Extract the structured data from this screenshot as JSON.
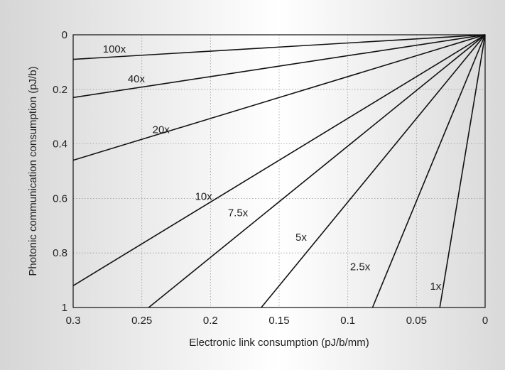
{
  "chart_data": {
    "type": "line",
    "title": "",
    "xlabel": "Electronic link consumption (pJ/b/mm)",
    "ylabel": "Photonic communication consumption (pJ/b)",
    "xlim": [
      0.3,
      0
    ],
    "ylim": [
      1,
      0
    ],
    "x_reversed": true,
    "y_reversed": true,
    "grid": true,
    "x_ticks": [
      "0.3",
      "0.25",
      "0.2",
      "0.15",
      "0.1",
      "0.05",
      "0"
    ],
    "y_ticks": [
      "0",
      "0.2",
      "0.4",
      "0.6",
      "0.8",
      "1"
    ],
    "series": [
      {
        "name": "100x",
        "x": [
          0,
          0.3
        ],
        "y": [
          0,
          0.09
        ]
      },
      {
        "name": "40x",
        "x": [
          0,
          0.3
        ],
        "y": [
          0,
          0.23
        ]
      },
      {
        "name": "20x",
        "x": [
          0,
          0.3
        ],
        "y": [
          0,
          0.46
        ]
      },
      {
        "name": "10x",
        "x": [
          0,
          0.3
        ],
        "y": [
          0,
          0.92
        ]
      },
      {
        "name": "7.5x",
        "x": [
          0,
          0.245
        ],
        "y": [
          0,
          1
        ]
      },
      {
        "name": "5x",
        "x": [
          0,
          0.163
        ],
        "y": [
          0,
          1
        ]
      },
      {
        "name": "2.5x",
        "x": [
          0,
          0.082
        ],
        "y": [
          0,
          1
        ]
      },
      {
        "name": "1x",
        "x": [
          0,
          0.033
        ],
        "y": [
          0,
          1
        ]
      }
    ],
    "line_labels": [
      {
        "text": "100x",
        "x": 0.27,
        "y": 0.052
      },
      {
        "text": "40x",
        "x": 0.254,
        "y": 0.162
      },
      {
        "text": "20x",
        "x": 0.236,
        "y": 0.348
      },
      {
        "text": "10x",
        "x": 0.205,
        "y": 0.592
      },
      {
        "text": "7.5x",
        "x": 0.18,
        "y": 0.652
      },
      {
        "text": "5x",
        "x": 0.134,
        "y": 0.742
      },
      {
        "text": "2.5x",
        "x": 0.091,
        "y": 0.85
      },
      {
        "text": "1x",
        "x": 0.036,
        "y": 0.922
      }
    ]
  }
}
